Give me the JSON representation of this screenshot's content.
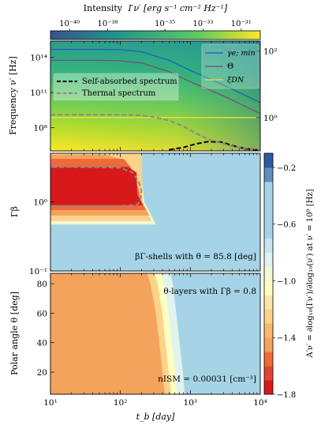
{
  "colors": {
    "colormap_top": [
      "#440154",
      "#3b528b",
      "#21918c",
      "#5ec962",
      "#fde725"
    ],
    "gamma_line": "#1f5fbf",
    "theta_line": "#7a4e7a",
    "xi_line": "#e8e840",
    "selfabs_line": "#000000",
    "thermal_line": "#8a8a8a",
    "cool_mid": "#a6d4e6",
    "warm_mid": "#f4a35c",
    "warm_deep": "#d7191c"
  },
  "top_colorbar": {
    "label_text": "Intensity",
    "label_math": "I′ν′ [erg s⁻¹ cm⁻² Hz⁻¹]",
    "ticks": [
      "10⁻⁴⁰",
      "10⁻³⁸",
      "10⁻³⁵",
      "10⁻³³",
      "10⁻³¹"
    ],
    "tick_exponents": [
      -40,
      -38,
      -35,
      -33,
      -31
    ],
    "range": [
      -41,
      -30
    ]
  },
  "side_colorbar": {
    "label": "A′ν′ = ∂log₁₀(I′ν′)/∂log₁₀(ν′) at ν′ = 10⁹ [Hz]",
    "ticks": [
      "−0.2",
      "−0.6",
      "−1.0",
      "−1.4",
      "−1.8"
    ],
    "tick_values": [
      -0.2,
      -0.6,
      -1.0,
      -1.4,
      -1.8
    ],
    "range": [
      -1.8,
      -0.1
    ],
    "bands": [
      {
        "from": -1.8,
        "to": -1.7,
        "color": "#d7191c"
      },
      {
        "from": -1.7,
        "to": -1.6,
        "color": "#e4432f"
      },
      {
        "from": -1.6,
        "to": -1.5,
        "color": "#ee6a3b"
      },
      {
        "from": -1.5,
        "to": -1.4,
        "color": "#f4a35c"
      },
      {
        "from": -1.4,
        "to": -1.3,
        "color": "#f9b96e"
      },
      {
        "from": -1.3,
        "to": -1.2,
        "color": "#fdd28a"
      },
      {
        "from": -1.2,
        "to": -1.1,
        "color": "#fee6a4"
      },
      {
        "from": -1.1,
        "to": -1.0,
        "color": "#ffffbf"
      },
      {
        "from": -1.0,
        "to": -0.9,
        "color": "#f1f9d5"
      },
      {
        "from": -0.9,
        "to": -0.8,
        "color": "#e2f3ee"
      },
      {
        "from": -0.8,
        "to": -0.7,
        "color": "#c8e6f2"
      },
      {
        "from": -0.7,
        "to": -0.6,
        "color": "#a6d4e6"
      },
      {
        "from": -0.6,
        "to": -0.5,
        "color": "#a6d4e6"
      },
      {
        "from": -0.5,
        "to": -0.4,
        "color": "#a6d4e6"
      },
      {
        "from": -0.4,
        "to": -0.3,
        "color": "#a6d4e6"
      },
      {
        "from": -0.3,
        "to": -0.2,
        "color": "#5f8fc2"
      },
      {
        "from": -0.2,
        "to": -0.1,
        "color": "#2c5aa0"
      }
    ]
  },
  "chart_data": [
    {
      "type": "heatmap",
      "panel": "top",
      "ylabel": "Frequency ν′ [Hz]",
      "xlim": [
        10,
        10000
      ],
      "ylim_exp": [
        6.0,
        15.4
      ],
      "yticks": [
        "10⁸",
        "10¹¹",
        "10¹⁴"
      ],
      "ytick_exponents": [
        8,
        11,
        14
      ],
      "right_ticks": [
        "10⁰",
        "10²"
      ],
      "right_tick_exponents": [
        0,
        2
      ],
      "right_ylim_exp": [
        -1.0,
        2.3
      ],
      "legend_upper_right": [
        "γe; min",
        "Θ",
        "ξDN"
      ],
      "legend_left": [
        "Self-absorbed spectrum",
        "Thermal spectrum"
      ],
      "series": [
        {
          "name": "γe; min",
          "axis": "right",
          "x": [
            10,
            50,
            100,
            200,
            500,
            1000,
            3000,
            10000
          ],
          "y_exp": [
            2.05,
            2.05,
            2.04,
            1.98,
            1.72,
            1.42,
            0.98,
            0.45
          ]
        },
        {
          "name": "Θ",
          "axis": "right",
          "x": [
            10,
            50,
            100,
            200,
            500,
            1000,
            3000,
            10000
          ],
          "y_exp": [
            1.72,
            1.72,
            1.71,
            1.64,
            1.38,
            1.08,
            0.65,
            0.12
          ]
        },
        {
          "name": "ξDN",
          "axis": "right",
          "x": [
            10,
            10000
          ],
          "y_exp": [
            0.0,
            0.0
          ]
        },
        {
          "name": "Self-absorbed spectrum",
          "axis": "left",
          "x": [
            500,
            800,
            1200,
            1800,
            2800,
            4000,
            6000,
            10000
          ],
          "y_exp": [
            6.1,
            6.3,
            6.6,
            6.8,
            6.75,
            6.45,
            6.2,
            6.05
          ]
        },
        {
          "name": "Thermal spectrum",
          "axis": "left",
          "x": [
            10,
            30,
            100,
            200,
            300,
            500,
            800,
            1200,
            2000,
            4000,
            10000
          ],
          "y_exp": [
            9.1,
            9.1,
            9.1,
            9.05,
            8.9,
            8.6,
            8.1,
            7.5,
            6.9,
            6.4,
            6.1
          ]
        }
      ]
    },
    {
      "type": "heatmap",
      "panel": "middle",
      "ylabel": "Γβ",
      "annotation": "βΓ-shells with θ = 85.8 [deg]",
      "xlim": [
        10,
        10000
      ],
      "ylim_exp": [
        -1.0,
        0.7
      ],
      "yticks": [
        "10⁻¹",
        "10⁰"
      ],
      "ytick_exponents": [
        -1,
        0
      ],
      "regions": [
        {
          "value": -1.75,
          "x": [
            10,
            130,
            170,
            175,
            210,
            10
          ],
          "y_exp": [
            0.5,
            0.5,
            0.42,
            0.1,
            -0.05,
            -0.05
          ]
        },
        {
          "value": -1.55,
          "x": [
            10,
            110,
            140,
            185,
            190,
            230,
            10
          ],
          "y_exp": [
            0.62,
            0.62,
            0.5,
            0.15,
            0.05,
            -0.12,
            -0.12
          ]
        },
        {
          "value": -1.45,
          "x": [
            10,
            60,
            120,
            180,
            200,
            260,
            10
          ],
          "y_exp": [
            0.68,
            0.68,
            0.6,
            0.2,
            0.0,
            -0.2,
            -0.2
          ]
        },
        {
          "value": -1.25,
          "x": [
            10,
            200,
            210,
            280,
            10
          ],
          "y_exp": [
            0.7,
            0.7,
            0.0,
            -0.28,
            -0.28
          ]
        },
        {
          "value": -0.95,
          "x": [
            10,
            160,
            190,
            220,
            320,
            10
          ],
          "y_exp": [
            0.7,
            0.7,
            0.55,
            0.0,
            -0.33,
            -0.33
          ]
        }
      ],
      "series": [
        {
          "name": "Thermal contour",
          "x": [
            10,
            40,
            100,
            150,
            180,
            195,
            200,
            195,
            180,
            150,
            100,
            40,
            10
          ],
          "y_exp": [
            -0.07,
            -0.07,
            -0.06,
            -0.05,
            -0.03,
            0.05,
            0.12,
            0.2,
            0.3,
            0.42,
            0.49,
            0.5,
            0.5
          ]
        }
      ]
    },
    {
      "type": "heatmap",
      "panel": "bottom",
      "xlabel": "t_b [day]",
      "ylabel": "Polar angle θ [deg]",
      "annotation_top": "θ-layers with Γβ = 0.8",
      "annotation_bottom": "nISM = 0.00031 [cm⁻³]",
      "xlim": [
        10,
        10000
      ],
      "xticks": [
        "10¹",
        "10²",
        "10³",
        "10⁴"
      ],
      "xtick_values": [
        10,
        100,
        1000,
        10000
      ],
      "ylim": [
        5,
        87
      ],
      "yticks": [
        "20",
        "40",
        "60",
        "80"
      ],
      "ytick_values": [
        20,
        40,
        60,
        80
      ],
      "boundaries": [
        {
          "value": -1.45,
          "theta": [
            5,
            20,
            40,
            60,
            80,
            87
          ],
          "t": [
            430,
            400,
            360,
            320,
            270,
            240
          ]
        },
        {
          "value": -1.25,
          "theta": [
            5,
            20,
            40,
            60,
            80,
            87
          ],
          "t": [
            530,
            490,
            440,
            400,
            340,
            310
          ]
        },
        {
          "value": -1.05,
          "theta": [
            5,
            20,
            40,
            60,
            80,
            87
          ],
          "t": [
            640,
            600,
            540,
            490,
            420,
            390
          ]
        },
        {
          "value": -0.85,
          "theta": [
            5,
            20,
            40,
            60,
            80,
            87
          ],
          "t": [
            830,
            780,
            700,
            630,
            560,
            520
          ]
        }
      ]
    }
  ]
}
